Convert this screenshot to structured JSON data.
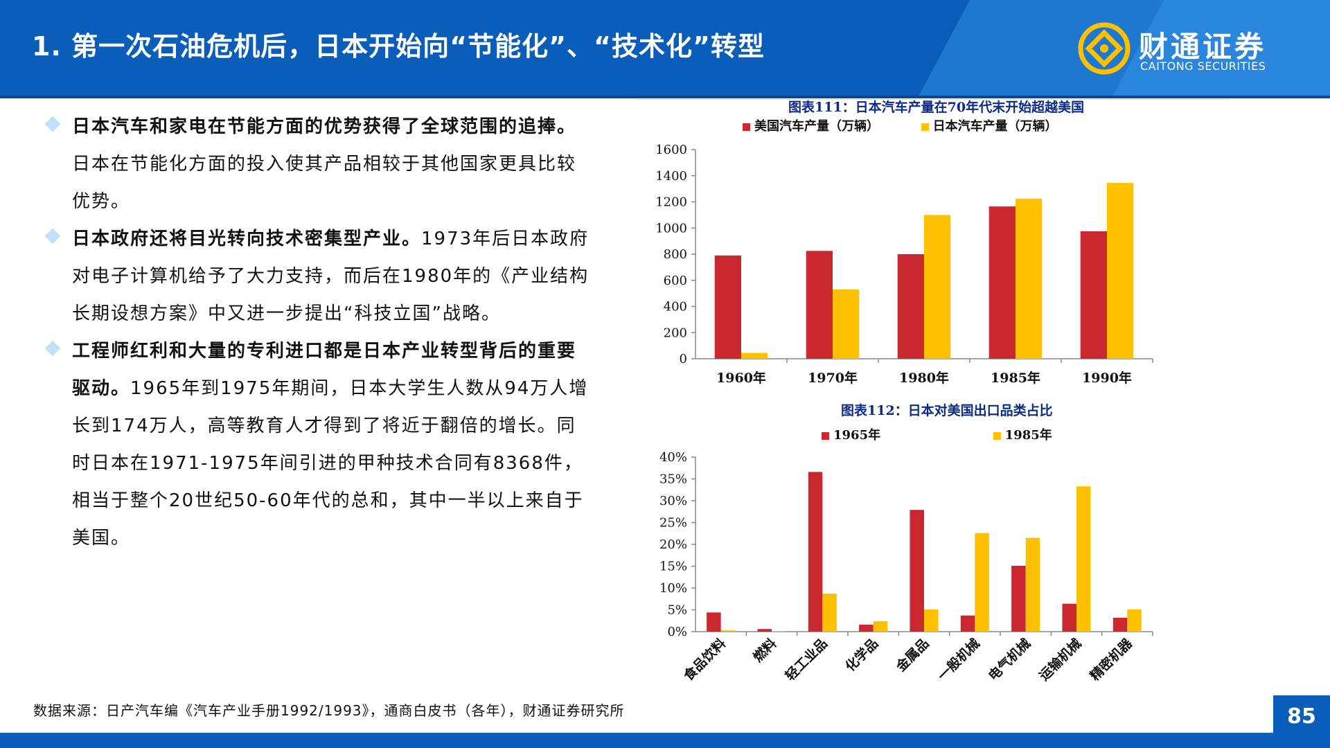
{
  "header": {
    "title": "1. 第一次石油危机后，日本开始向“节能化”、“技术化”转型",
    "logo_cn": "财通证券",
    "logo_en": "CAITONG SECURITIES"
  },
  "bullets": [
    {
      "bold": "日本汽车和家电在节能方面的优势获得了全球范围的追捧。",
      "text": "日本在节能化方面的投入使其产品相较于其他国家更具比较优势。"
    },
    {
      "bold": "日本政府还将目光转向技术密集型产业。",
      "text": "1973年后日本政府对电子计算机给予了大力支持，而后在1980年的《产业结构长期设想方案》中又进一步提出“科技立国”战略。"
    },
    {
      "bold": "工程师红利和大量的专利进口都是日本产业转型背后的重要驱动。",
      "text": "1965年到1975年期间，日本大学生人数从94万人增长到174万人，高等教育人才得到了将近于翻倍的增长。同时日本在1971-1975年间引进的甲种技术合同有8368件，相当于整个20世纪50-60年代的总和，其中一半以上来自于美国。"
    }
  ],
  "footer": {
    "source": "数据来源：日产汽车编《汽车产业手册1992/1993》，通商白皮书（各年），财通证券研究所",
    "page": "85"
  },
  "colors": {
    "red": "#c8282e",
    "yellow": "#ffc000",
    "brand": "#0a5db8"
  },
  "chart_data": [
    {
      "type": "bar",
      "title": "图表111：日本汽车产量在70年代末开始超越美国",
      "categories": [
        "1960年",
        "1970年",
        "1980年",
        "1985年",
        "1990年"
      ],
      "series": [
        {
          "name": "美国汽车产量（万辆）",
          "values": [
            790,
            825,
            800,
            1165,
            975
          ]
        },
        {
          "name": "日本汽车产量（万辆）",
          "values": [
            45,
            530,
            1100,
            1225,
            1345
          ]
        }
      ],
      "ylim": [
        0,
        1600
      ],
      "yticks": [
        "0",
        "200",
        "400",
        "600",
        "800",
        "1000",
        "1200",
        "1400",
        "1600"
      ],
      "legend": "top"
    },
    {
      "type": "bar",
      "title": "图表112：日本对美国出口品类占比",
      "categories": [
        "食品饮料",
        "燃料",
        "轻工业品",
        "化学品",
        "金属品",
        "一般机械",
        "电气机械",
        "运输机械",
        "精密机器"
      ],
      "series": [
        {
          "name": "1965年",
          "values": [
            4.4,
            0.6,
            36.6,
            1.6,
            27.9,
            3.7,
            15.1,
            6.4,
            3.2
          ]
        },
        {
          "name": "1985年",
          "values": [
            0.3,
            0.1,
            8.7,
            2.4,
            5.1,
            22.6,
            21.5,
            33.3,
            5.1
          ]
        }
      ],
      "ylim": [
        0,
        40
      ],
      "yticks": [
        "0%",
        "5%",
        "10%",
        "15%",
        "20%",
        "25%",
        "30%",
        "35%",
        "40%"
      ],
      "legend": "top"
    }
  ]
}
